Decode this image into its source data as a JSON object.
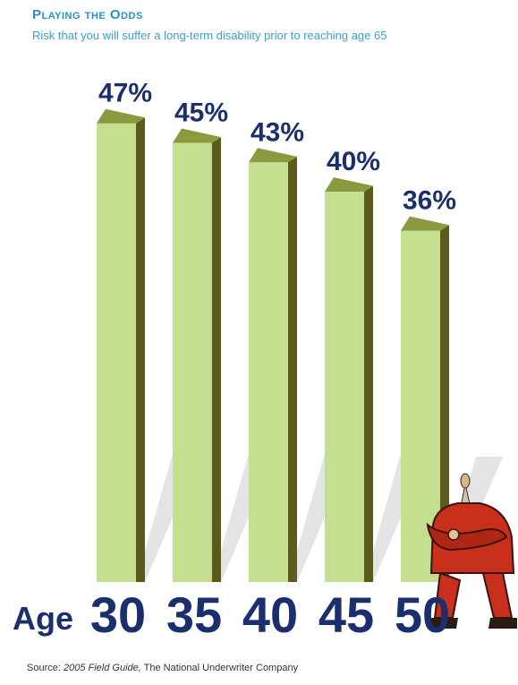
{
  "chart_data": {
    "type": "bar",
    "title": "Playing the Odds",
    "subtitle": "Risk that you will suffer a long-term disability prior to reaching age 65",
    "xlabel": "Age",
    "ylabel": "",
    "ylim": [
      0,
      50
    ],
    "categories": [
      "30",
      "35",
      "40",
      "45",
      "50"
    ],
    "values": [
      47,
      45,
      43,
      40,
      36
    ],
    "value_labels": [
      "47%",
      "45%",
      "43%",
      "40%",
      "36%"
    ],
    "grid": false,
    "legend": "none"
  },
  "source": {
    "prefix": "Source: ",
    "title": "2005 Field Guide,",
    "rest": " The National Underwriter Company"
  },
  "colors": {
    "bar_front": "#c3df8f",
    "bar_side": "#5c5a1c",
    "bar_top": "#8a9a3e",
    "label": "#1b2f6e",
    "title": "#2b8fc4",
    "subtitle": "#3e9dcd",
    "figure": "#c8301c"
  },
  "illustration": {
    "icon": "businessman-arms-crossed-icon"
  }
}
